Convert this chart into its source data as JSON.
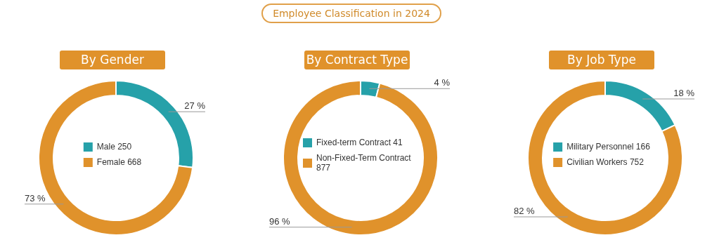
{
  "chart_data": [
    {
      "type": "donut",
      "title": "By Gender",
      "annotations": [
        "Employee Classification in 2024"
      ],
      "categories": [
        "Male 250",
        "Female 668"
      ],
      "values": [
        27,
        73
      ],
      "colors": [
        "#26a1a9",
        "#e0922b"
      ],
      "value_labels": [
        "27 %",
        "73 %"
      ],
      "legend": "center"
    },
    {
      "type": "donut",
      "title": "By Contract Type",
      "categories": [
        "Fixed-term Contract 41",
        "Non-Fixed-Term Contract 877"
      ],
      "values": [
        4,
        96
      ],
      "colors": [
        "#26a1a9",
        "#e0922b"
      ],
      "value_labels": [
        "4 %",
        "96 %"
      ],
      "legend": "center"
    },
    {
      "type": "donut",
      "title": "By Job Type",
      "categories": [
        "Military Personnel 166",
        "Civilian Workers 752"
      ],
      "values": [
        18,
        82
      ],
      "colors": [
        "#26a1a9",
        "#e0922b"
      ],
      "value_labels": [
        "18 %",
        "82 %"
      ],
      "legend": "center"
    }
  ]
}
